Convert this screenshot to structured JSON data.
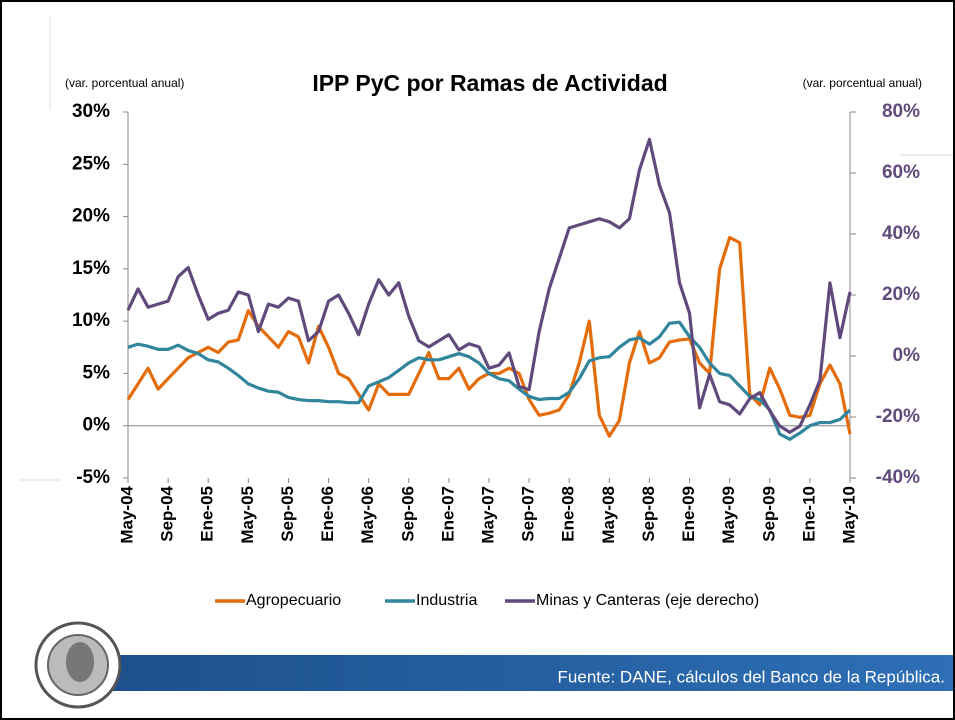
{
  "chart_data": {
    "type": "line",
    "title": "IPP PyC por Ramas de Actividad",
    "y_label": "(var. porcentual anual)",
    "y2_label": "(var. porcentual anual)",
    "source": "Fuente: DANE, cálculos del Banco de la República.",
    "categories": [
      "May-04",
      null,
      null,
      null,
      "Sep-04",
      null,
      null,
      null,
      "Ene-05",
      null,
      null,
      null,
      "May-05",
      null,
      null,
      null,
      "Sep-05",
      null,
      null,
      null,
      "Ene-06",
      null,
      null,
      null,
      "May-06",
      null,
      null,
      null,
      "Sep-06",
      null,
      null,
      null,
      "Ene-07",
      null,
      null,
      null,
      "May-07",
      null,
      null,
      null,
      "Sep-07",
      null,
      null,
      null,
      "Ene-08",
      null,
      null,
      null,
      "May-08",
      null,
      null,
      null,
      "Sep-08",
      null,
      null,
      null,
      "Ene-09",
      null,
      null,
      null,
      "May-09",
      null,
      null,
      null,
      "Sep-09",
      null,
      null,
      null,
      "Ene-10",
      null,
      null,
      null,
      "May-10"
    ],
    "ylim": [
      -5,
      30
    ],
    "yticks": [
      {
        "value": -5,
        "label": "-5%"
      },
      {
        "value": 0,
        "label": "0%"
      },
      {
        "value": 5,
        "label": "5%"
      },
      {
        "value": 10,
        "label": "10%"
      },
      {
        "value": 15,
        "label": "15%"
      },
      {
        "value": 20,
        "label": "20%"
      },
      {
        "value": 25,
        "label": "25%"
      },
      {
        "value": 30,
        "label": "30%"
      }
    ],
    "y2lim": [
      -40,
      80
    ],
    "y2ticks": [
      {
        "value": -40,
        "label": "-40%"
      },
      {
        "value": -20,
        "label": "-20%"
      },
      {
        "value": 0,
        "label": "0%"
      },
      {
        "value": 20,
        "label": "20%"
      },
      {
        "value": 40,
        "label": "40%"
      },
      {
        "value": 60,
        "label": "60%"
      },
      {
        "value": 80,
        "label": "80%"
      }
    ],
    "series": [
      {
        "name": "Agropecuario",
        "color": "#e46c0a",
        "values": [
          2.5,
          4,
          5.5,
          3.5,
          4.5,
          5.5,
          6.5,
          7,
          7.5,
          7,
          8,
          8.2,
          11,
          9.5,
          8.5,
          7.5,
          9,
          8.5,
          6,
          9.5,
          7.5,
          5,
          4.5,
          3,
          1.5,
          4,
          3,
          3,
          3,
          5,
          7,
          4.5,
          4.5,
          5.5,
          3.5,
          4.5,
          5,
          5,
          5.5,
          5,
          2.5,
          1,
          1.2,
          1.5,
          3,
          6,
          10,
          1,
          -1,
          0.5,
          6,
          9,
          6,
          6.5,
          8,
          8.2,
          8.3,
          6,
          5,
          15,
          18,
          17.5,
          3,
          2,
          5.5,
          3.5,
          1,
          0.8,
          1,
          4,
          5.8,
          4,
          -0.8
        ]
      },
      {
        "name": "Industria",
        "color": "#31859c",
        "values": [
          7.5,
          7.8,
          7.6,
          7.3,
          7.3,
          7.7,
          7.2,
          6.9,
          6.3,
          6.1,
          5.5,
          4.8,
          4,
          3.6,
          3.3,
          3.2,
          2.7,
          2.5,
          2.4,
          2.4,
          2.3,
          2.3,
          2.2,
          2.2,
          3.8,
          4.2,
          4.6,
          5.3,
          6,
          6.5,
          6.3,
          6.3,
          6.6,
          6.9,
          6.6,
          6,
          5,
          4.5,
          4.3,
          3.5,
          2.8,
          2.5,
          2.6,
          2.6,
          3.2,
          4.5,
          6.2,
          6.5,
          6.6,
          7.5,
          8.2,
          8.4,
          7.8,
          8.5,
          9.8,
          9.9,
          8.5,
          7.5,
          6,
          5,
          4.8,
          3.8,
          2.8,
          2.5,
          1.5,
          -0.8,
          -1.3,
          -0.7,
          0,
          0.3,
          0.3,
          0.6,
          1.5
        ]
      },
      {
        "name": "Minas y Canteras (eje derecho)",
        "color": "#604a7b",
        "axis": "y2",
        "values": [
          15,
          22,
          16,
          17,
          18,
          26,
          29,
          20,
          12,
          14,
          15,
          21,
          20,
          8,
          17,
          16,
          19,
          18,
          5,
          8,
          18,
          20,
          14,
          7,
          17,
          25,
          20,
          24,
          13,
          5,
          3,
          5,
          7,
          2,
          4,
          3,
          -4,
          -3,
          1,
          -10,
          -11,
          8,
          22,
          32,
          42,
          43,
          44,
          45,
          44,
          42,
          45,
          61,
          71,
          56,
          47,
          24,
          14,
          -17,
          -6,
          -15,
          -16,
          -19,
          -14,
          -12,
          -18,
          -23,
          -25,
          -23,
          -16,
          -8,
          24,
          6,
          21
        ]
      }
    ],
    "legend": "bottom"
  }
}
